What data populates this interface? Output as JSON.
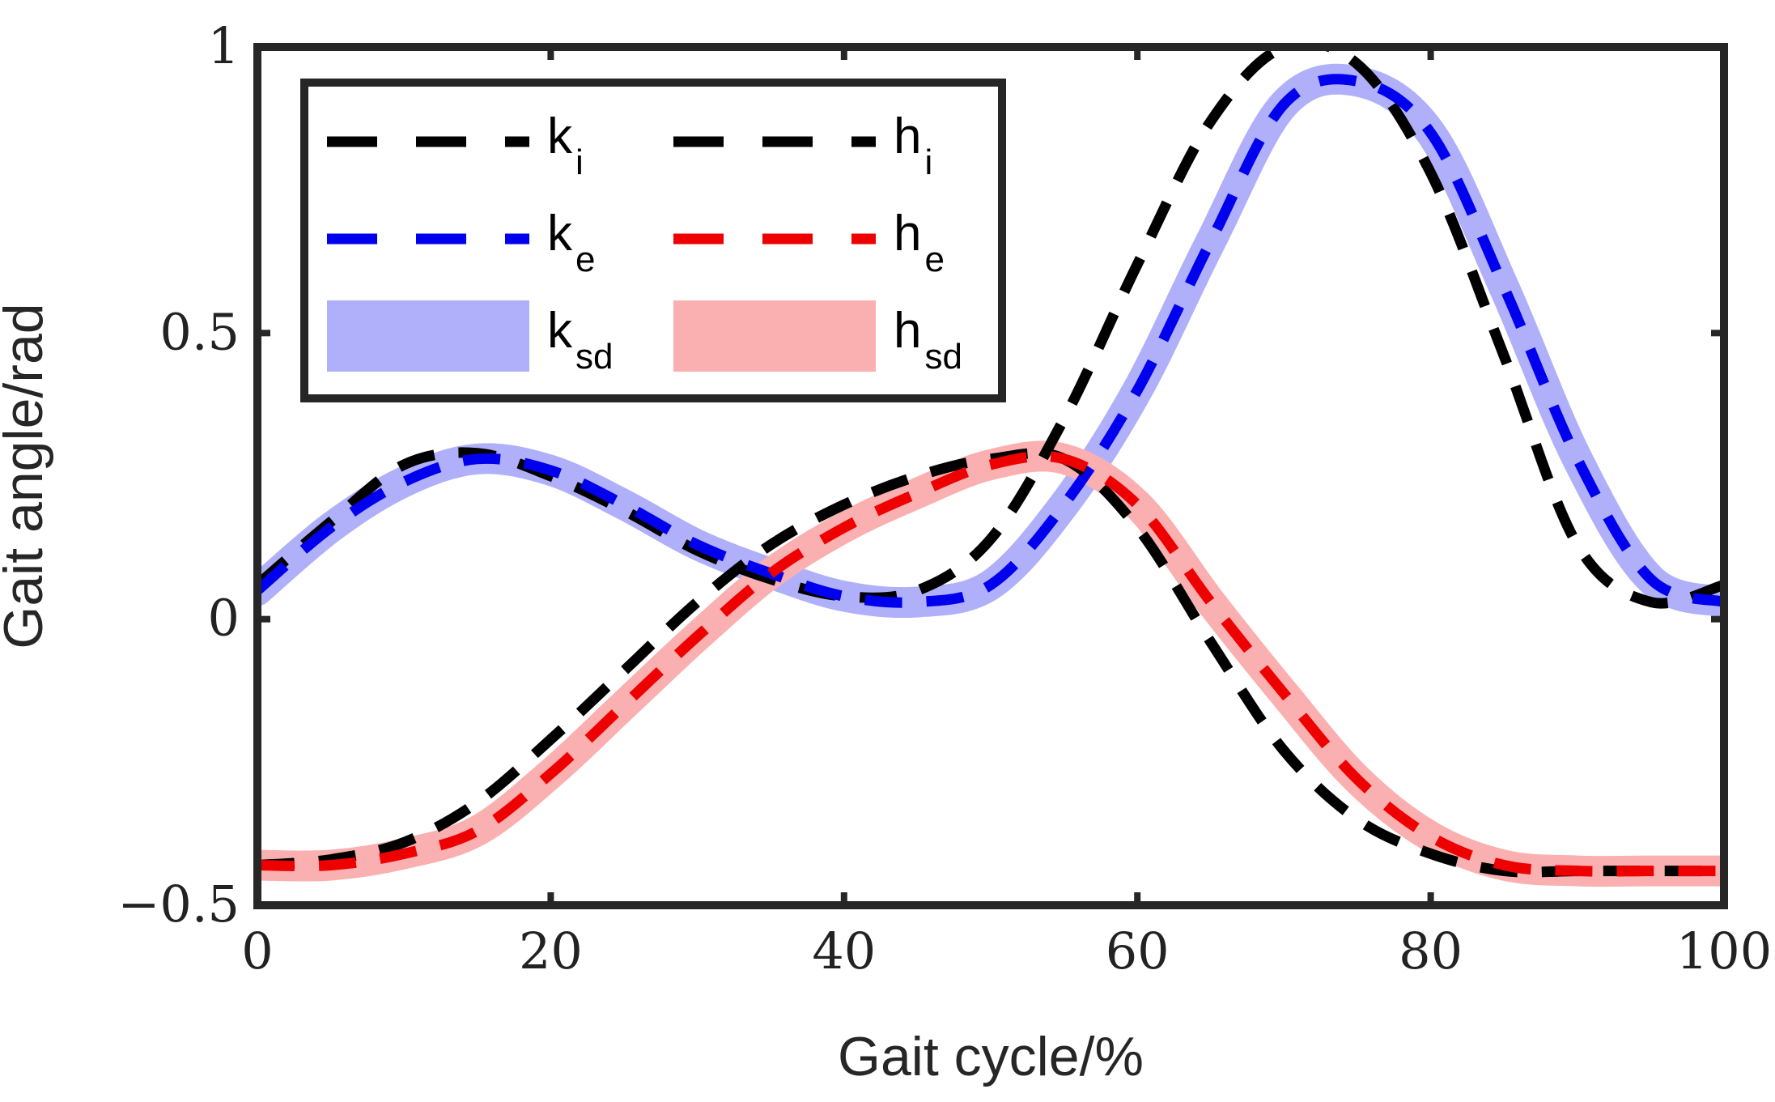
{
  "chart_data": {
    "type": "line",
    "title": "",
    "xlabel": "Gait cycle/%",
    "ylabel": "Gait angle/rad",
    "xlim": [
      0,
      100
    ],
    "ylim": [
      -0.5,
      1
    ],
    "xticks": [
      0,
      20,
      40,
      60,
      80,
      100
    ],
    "xtick_labels": [
      "0",
      "20",
      "40",
      "60",
      "80",
      "100"
    ],
    "yticks": [
      -0.5,
      0,
      0.5,
      1
    ],
    "ytick_labels": [
      "−0.5",
      "0",
      "0.5",
      "1"
    ],
    "grid": false,
    "legend_position": "top-left",
    "x": [
      0,
      5,
      10,
      15,
      20,
      25,
      30,
      35,
      40,
      45,
      50,
      55,
      60,
      65,
      70,
      75,
      80,
      85,
      90,
      95,
      100
    ],
    "series": [
      {
        "name": "k_sd",
        "legend_main": "k",
        "legend_sub": "sd",
        "kind": "band",
        "color": "#b0b0fa",
        "values": [
          0.05,
          0.16,
          0.24,
          0.28,
          0.26,
          0.2,
          0.13,
          0.08,
          0.04,
          0.03,
          0.06,
          0.2,
          0.4,
          0.66,
          0.9,
          0.94,
          0.85,
          0.58,
          0.28,
          0.07,
          0.03
        ]
      },
      {
        "name": "h_sd",
        "legend_main": "h",
        "legend_sub": "sd",
        "kind": "band",
        "color": "#fab0b0",
        "values": [
          -0.43,
          -0.43,
          -0.41,
          -0.37,
          -0.27,
          -0.15,
          -0.03,
          0.08,
          0.16,
          0.22,
          0.27,
          0.28,
          0.2,
          0.03,
          -0.13,
          -0.28,
          -0.38,
          -0.43,
          -0.44,
          -0.44,
          -0.44
        ]
      },
      {
        "name": "k_i",
        "legend_main": "k",
        "legend_sub": "i",
        "kind": "dashed",
        "color": "#000000",
        "values": [
          0.06,
          0.17,
          0.27,
          0.29,
          0.25,
          0.19,
          0.12,
          0.07,
          0.04,
          0.05,
          0.14,
          0.35,
          0.62,
          0.87,
          1.0,
          0.97,
          0.78,
          0.46,
          0.13,
          0.03,
          0.06
        ]
      },
      {
        "name": "k_e",
        "legend_main": "k",
        "legend_sub": "e",
        "kind": "dashed",
        "color": "#0000ee",
        "values": [
          0.05,
          0.16,
          0.24,
          0.28,
          0.26,
          0.2,
          0.13,
          0.08,
          0.04,
          0.03,
          0.06,
          0.2,
          0.4,
          0.66,
          0.9,
          0.94,
          0.85,
          0.58,
          0.28,
          0.07,
          0.03
        ]
      },
      {
        "name": "h_i",
        "legend_main": "h",
        "legend_sub": "i",
        "kind": "dashed",
        "color": "#000000",
        "values": [
          -0.43,
          -0.42,
          -0.39,
          -0.32,
          -0.21,
          -0.09,
          0.03,
          0.13,
          0.2,
          0.25,
          0.28,
          0.28,
          0.16,
          -0.04,
          -0.23,
          -0.35,
          -0.41,
          -0.44,
          -0.44,
          -0.44,
          -0.44
        ]
      },
      {
        "name": "h_e",
        "legend_main": "h",
        "legend_sub": "e",
        "kind": "dashed",
        "color": "#ee0000",
        "values": [
          -0.43,
          -0.43,
          -0.41,
          -0.37,
          -0.27,
          -0.15,
          -0.03,
          0.08,
          0.16,
          0.22,
          0.27,
          0.28,
          0.2,
          0.03,
          -0.13,
          -0.28,
          -0.38,
          -0.43,
          -0.44,
          -0.44,
          -0.44
        ]
      }
    ],
    "legend_order": [
      "k_i",
      "h_i",
      "k_e",
      "h_e",
      "k_sd",
      "h_sd"
    ]
  }
}
